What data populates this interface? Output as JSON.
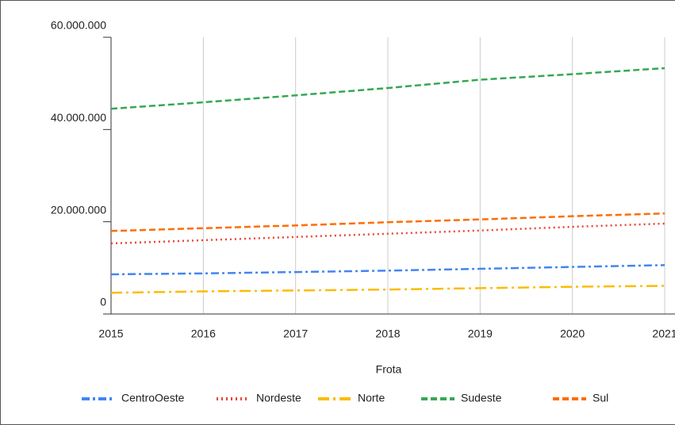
{
  "chart_data": {
    "type": "line",
    "x_label": "Frota",
    "x": [
      2015,
      2016,
      2017,
      2018,
      2019,
      2020,
      2021
    ],
    "xlim": [
      2015,
      2021
    ],
    "xticks": [
      2015,
      2016,
      2017,
      2018,
      2019,
      2020,
      2021
    ],
    "ylim": [
      0,
      60000000
    ],
    "yticks": [
      0,
      {
        "value": 20000000,
        "label": "20.000.000"
      },
      {
        "value": 40000000,
        "label": "40.000.000"
      },
      {
        "value": 60000000,
        "label": "60.000.000"
      }
    ],
    "grid": "x",
    "legend": "bottom",
    "series": [
      {
        "name": "CentroOeste",
        "color": "#4285f4",
        "dash": "dashdot",
        "values": [
          8600000,
          8800000,
          9100000,
          9400000,
          9800000,
          10200000,
          10600000
        ]
      },
      {
        "name": "Nordeste",
        "color": "#ea4335",
        "dash": "dotted",
        "values": [
          15300000,
          16000000,
          16700000,
          17400000,
          18100000,
          18900000,
          19600000
        ]
      },
      {
        "name": "Norte",
        "color": "#fbbc04",
        "dash": "longdashdot",
        "values": [
          4600000,
          4900000,
          5100000,
          5300000,
          5600000,
          5900000,
          6100000
        ]
      },
      {
        "name": "Sudeste",
        "color": "#34a853",
        "dash": "dashed",
        "values": [
          44500000,
          45900000,
          47400000,
          49000000,
          50800000,
          52000000,
          53300000
        ]
      },
      {
        "name": "Sul",
        "color": "#ff6d01",
        "dash": "dashed",
        "values": [
          18000000,
          18600000,
          19200000,
          19900000,
          20500000,
          21200000,
          21800000
        ]
      }
    ]
  }
}
